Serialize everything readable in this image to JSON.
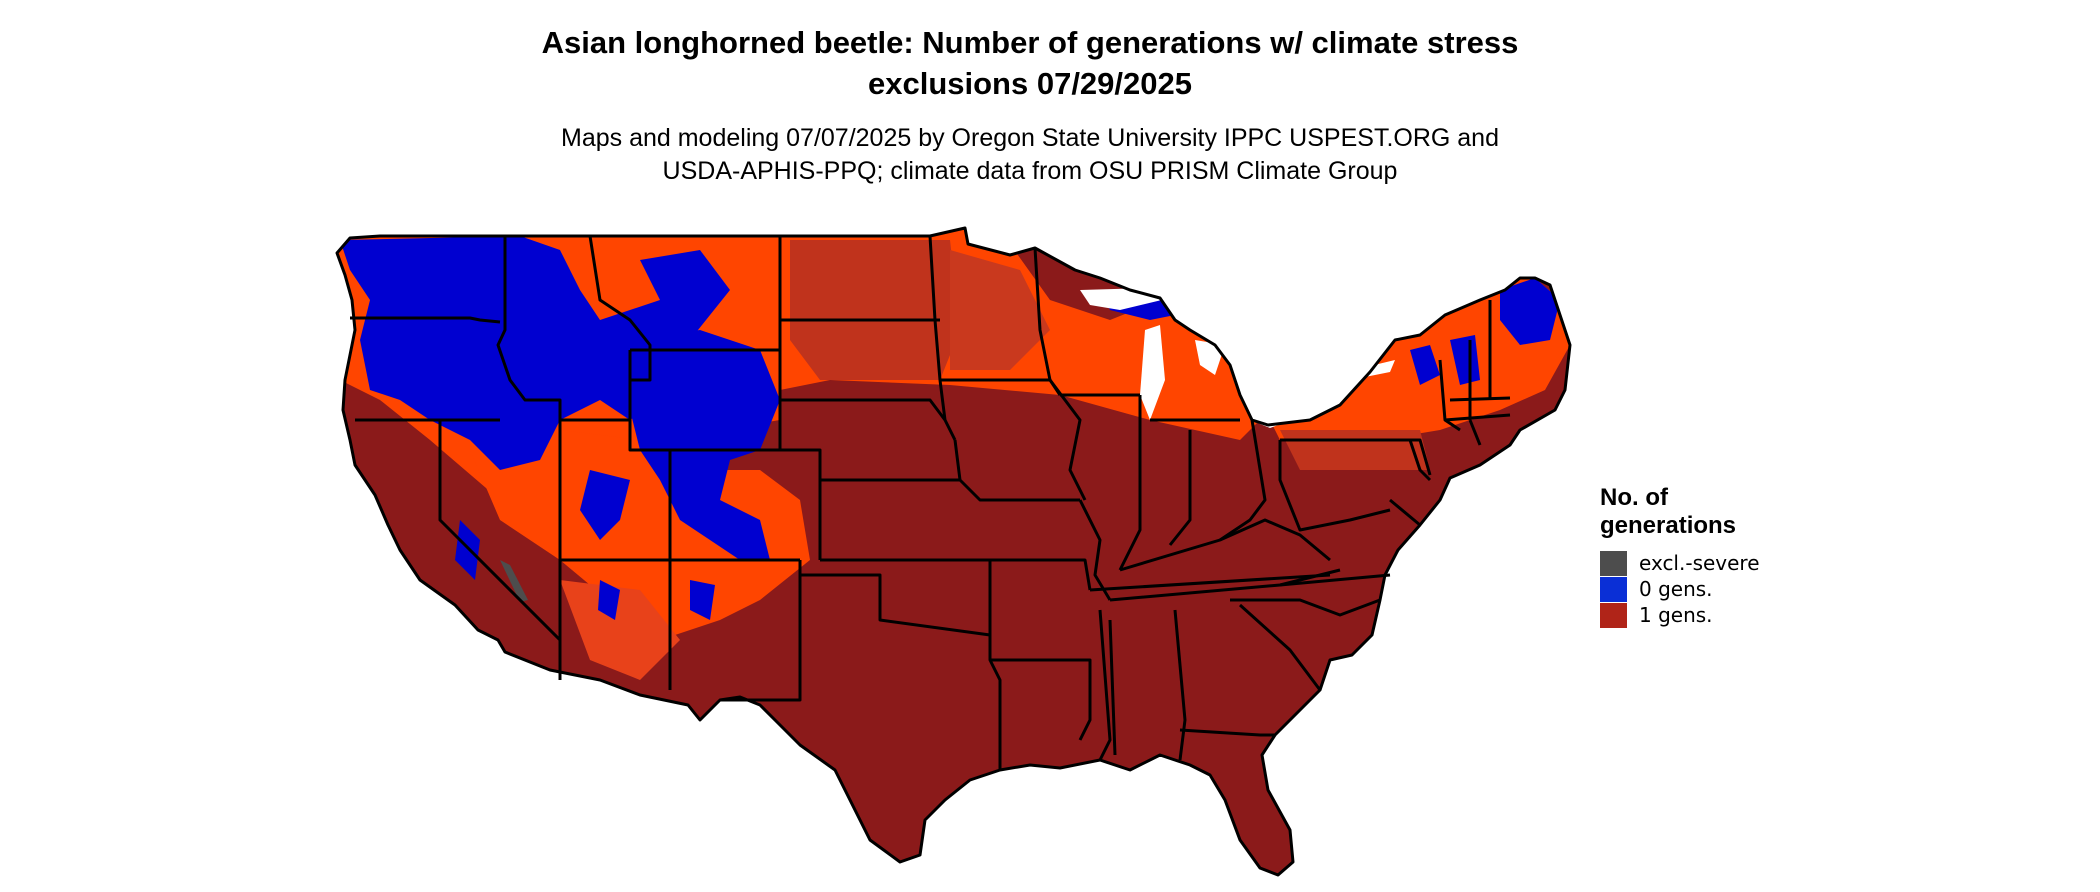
{
  "title_line1": "Asian longhorned beetle: Number of generations w/ climate stress",
  "title_line2": "exclusions 07/29/2025",
  "subtitle_line1": "Maps and modeling 07/07/2025 by Oregon State University IPPC USPEST.ORG and",
  "subtitle_line2": "USDA-APHIS-PPQ; climate data from OSU PRISM Climate Group",
  "legend": {
    "title_line1": "No. of",
    "title_line2": "generations",
    "items": [
      {
        "label": "excl.-severe",
        "color": "#4d4d4d"
      },
      {
        "label": "0 gens.",
        "color": "#0a2fd6"
      },
      {
        "label": "1 gens.",
        "color": "#b02418"
      }
    ]
  },
  "map_colors": {
    "one_gen_dark": "#8b1a1a",
    "one_gen_mid": "#c0331c",
    "one_gen_light": "#ff4500",
    "zero_gen": "#0000d0",
    "excluded": "#4d4d4d",
    "border": "#000000"
  }
}
